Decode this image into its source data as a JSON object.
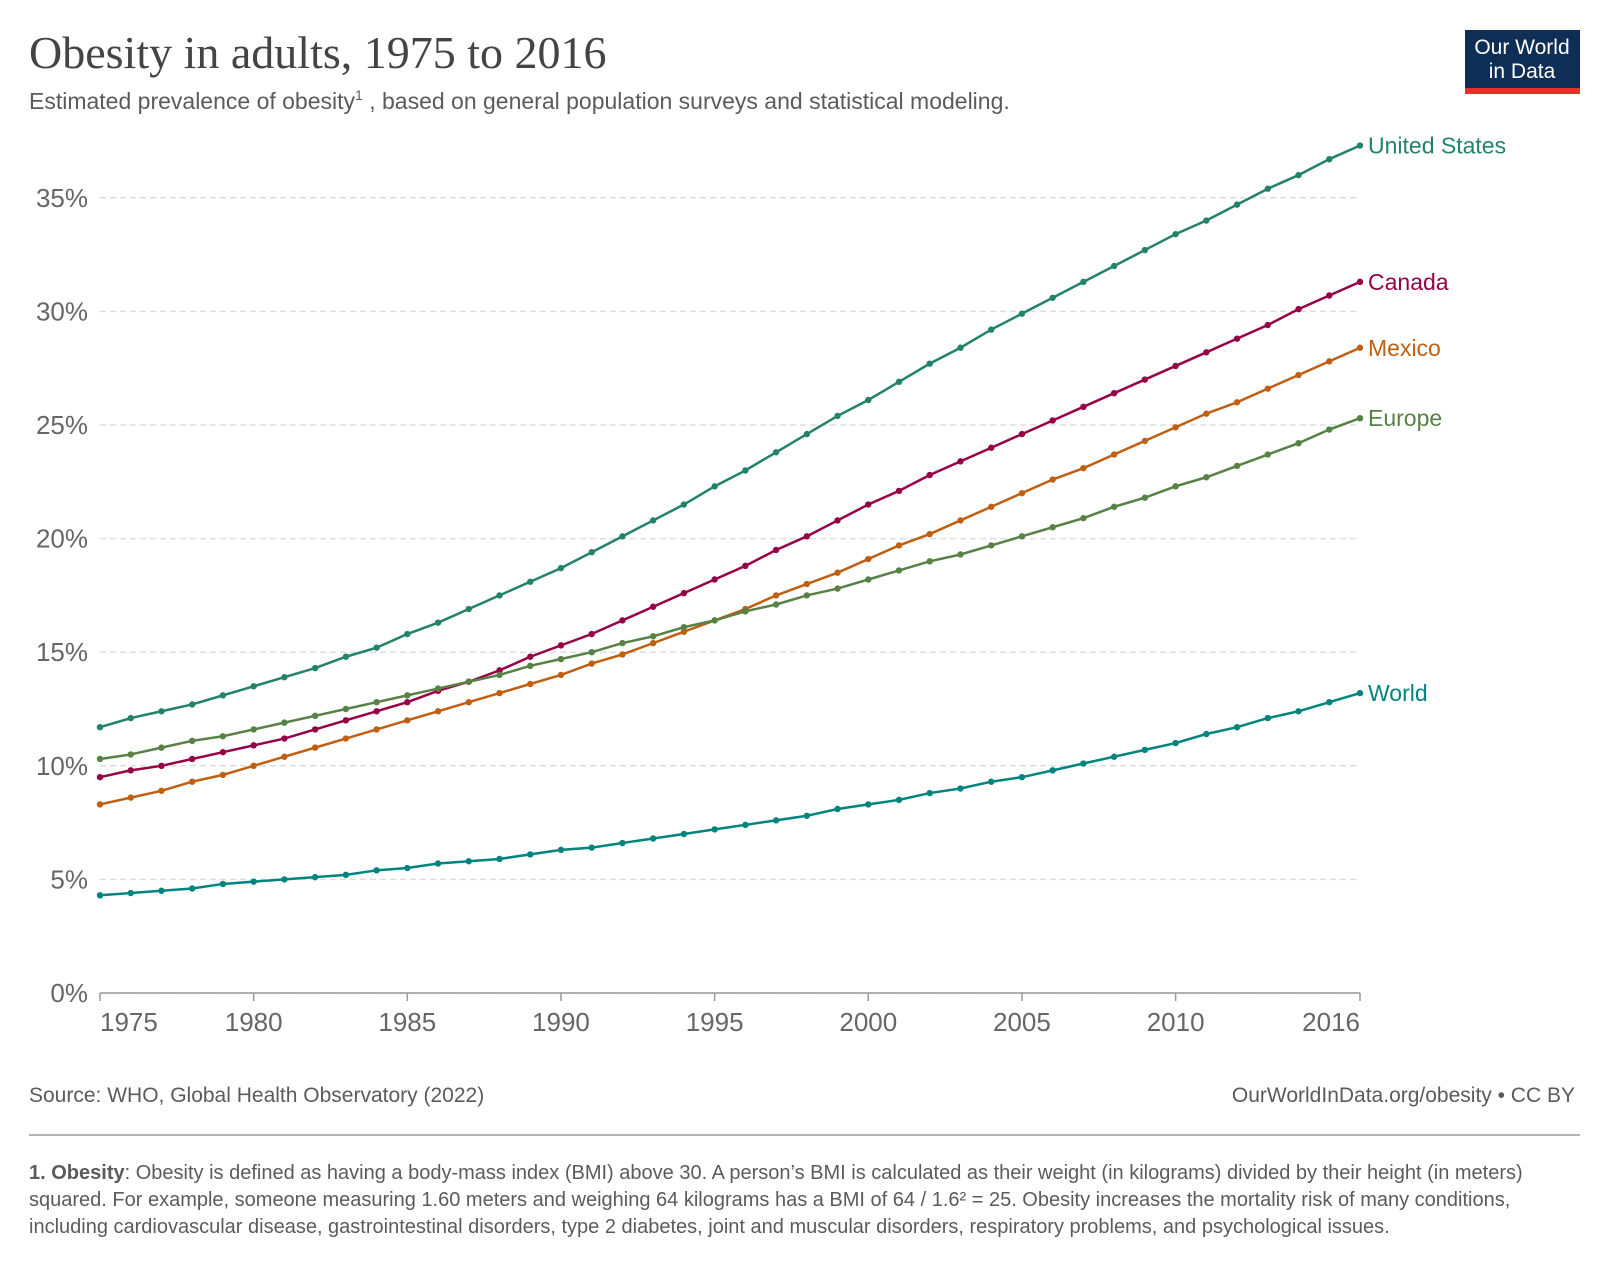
{
  "chart_data": {
    "type": "line",
    "title": "Obesity in adults, 1975 to 2016",
    "subtitle": "Estimated prevalence of obesity",
    "subtitle_note_ref": "1",
    "subtitle_rest": " , based on general population surveys and statistical modeling.",
    "logo": [
      "Our World",
      "in Data"
    ],
    "source": "Source: WHO, Global Health Observatory (2022)",
    "url": "OurWorldInData.org/obesity • CC BY",
    "footnote_label": "1. Obesity",
    "footnote_text": ": Obesity is defined as having a body-mass index (BMI) above 30. A person’s BMI is calculated as their weight (in kilograms) divided by their height (in meters) squared. For example, someone measuring 1.60 meters and weighing 64 kilograms has a BMI of 64 / 1.6² = 25. Obesity increases the mortality risk of many conditions, including cardiovascular disease, gastrointestinal disorders, type 2 diabetes, joint and muscular disorders, respiratory problems, and psychological issues.",
    "x": [
      1975,
      1976,
      1977,
      1978,
      1979,
      1980,
      1981,
      1982,
      1983,
      1984,
      1985,
      1986,
      1987,
      1988,
      1989,
      1990,
      1991,
      1992,
      1993,
      1994,
      1995,
      1996,
      1997,
      1998,
      1999,
      2000,
      2001,
      2002,
      2003,
      2004,
      2005,
      2006,
      2007,
      2008,
      2009,
      2010,
      2011,
      2012,
      2013,
      2014,
      2015,
      2016
    ],
    "xlim": [
      1975,
      2016
    ],
    "xticks": [
      1975,
      1980,
      1985,
      1990,
      1995,
      2000,
      2005,
      2010,
      2016
    ],
    "ylim": [
      0,
      37.5
    ],
    "yticks": [
      {
        "value": 0,
        "label": "0%"
      },
      {
        "value": 5,
        "label": "5%"
      },
      {
        "value": 10,
        "label": "10%"
      },
      {
        "value": 15,
        "label": "15%"
      },
      {
        "value": 20,
        "label": "20%"
      },
      {
        "value": 25,
        "label": "25%"
      },
      {
        "value": 30,
        "label": "30%"
      },
      {
        "value": 35,
        "label": "35%"
      }
    ],
    "grid": true,
    "series": [
      {
        "name": "United States",
        "color": "#23826a",
        "values": [
          11.7,
          12.1,
          12.4,
          12.7,
          13.1,
          13.5,
          13.9,
          14.3,
          14.8,
          15.2,
          15.8,
          16.3,
          16.9,
          17.5,
          18.1,
          18.7,
          19.4,
          20.1,
          20.8,
          21.5,
          22.3,
          23.0,
          23.8,
          24.6,
          25.4,
          26.1,
          26.9,
          27.7,
          28.4,
          29.2,
          29.9,
          30.6,
          31.3,
          32.0,
          32.7,
          33.4,
          34.0,
          34.7,
          35.4,
          36.0,
          36.7,
          37.3
        ]
      },
      {
        "name": "Canada",
        "color": "#970046",
        "values": [
          9.5,
          9.8,
          10.0,
          10.3,
          10.6,
          10.9,
          11.2,
          11.6,
          12.0,
          12.4,
          12.8,
          13.3,
          13.7,
          14.2,
          14.8,
          15.3,
          15.8,
          16.4,
          17.0,
          17.6,
          18.2,
          18.8,
          19.5,
          20.1,
          20.8,
          21.5,
          22.1,
          22.8,
          23.4,
          24.0,
          24.6,
          25.2,
          25.8,
          26.4,
          27.0,
          27.6,
          28.2,
          28.8,
          29.4,
          30.1,
          30.7,
          31.3
        ]
      },
      {
        "name": "Mexico",
        "color": "#c05f12",
        "values": [
          8.3,
          8.6,
          8.9,
          9.3,
          9.6,
          10.0,
          10.4,
          10.8,
          11.2,
          11.6,
          12.0,
          12.4,
          12.8,
          13.2,
          13.6,
          14.0,
          14.5,
          14.9,
          15.4,
          15.9,
          16.4,
          16.9,
          17.5,
          18.0,
          18.5,
          19.1,
          19.7,
          20.2,
          20.8,
          21.4,
          22.0,
          22.6,
          23.1,
          23.7,
          24.3,
          24.9,
          25.5,
          26.0,
          26.6,
          27.2,
          27.8,
          28.4
        ]
      },
      {
        "name": "Europe",
        "color": "#578145",
        "values": [
          10.3,
          10.5,
          10.8,
          11.1,
          11.3,
          11.6,
          11.9,
          12.2,
          12.5,
          12.8,
          13.1,
          13.4,
          13.7,
          14.0,
          14.4,
          14.7,
          15.0,
          15.4,
          15.7,
          16.1,
          16.4,
          16.8,
          17.1,
          17.5,
          17.8,
          18.2,
          18.6,
          19.0,
          19.3,
          19.7,
          20.1,
          20.5,
          20.9,
          21.4,
          21.8,
          22.3,
          22.7,
          23.2,
          23.7,
          24.2,
          24.8,
          25.3
        ]
      },
      {
        "name": "World",
        "color": "#00847e",
        "values": [
          4.3,
          4.4,
          4.5,
          4.6,
          4.8,
          4.9,
          5.0,
          5.1,
          5.2,
          5.4,
          5.5,
          5.7,
          5.8,
          5.9,
          6.1,
          6.3,
          6.4,
          6.6,
          6.8,
          7.0,
          7.2,
          7.4,
          7.6,
          7.8,
          8.1,
          8.3,
          8.5,
          8.8,
          9.0,
          9.3,
          9.5,
          9.8,
          10.1,
          10.4,
          10.7,
          11.0,
          11.4,
          11.7,
          12.1,
          12.4,
          12.8,
          13.2
        ]
      }
    ]
  }
}
